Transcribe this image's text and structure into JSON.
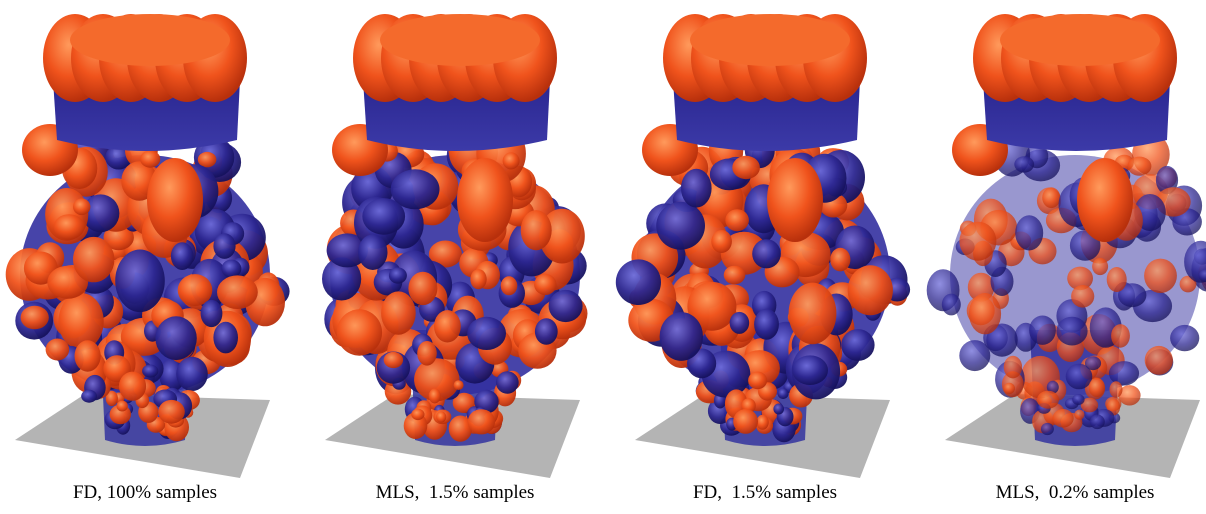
{
  "panels": [
    {
      "caption": "FD, 100% samples"
    },
    {
      "caption": "MLS,  1.5% samples"
    },
    {
      "caption": "FD,  1.5% samples"
    },
    {
      "caption": "MLS,  0.2% samples"
    }
  ]
}
